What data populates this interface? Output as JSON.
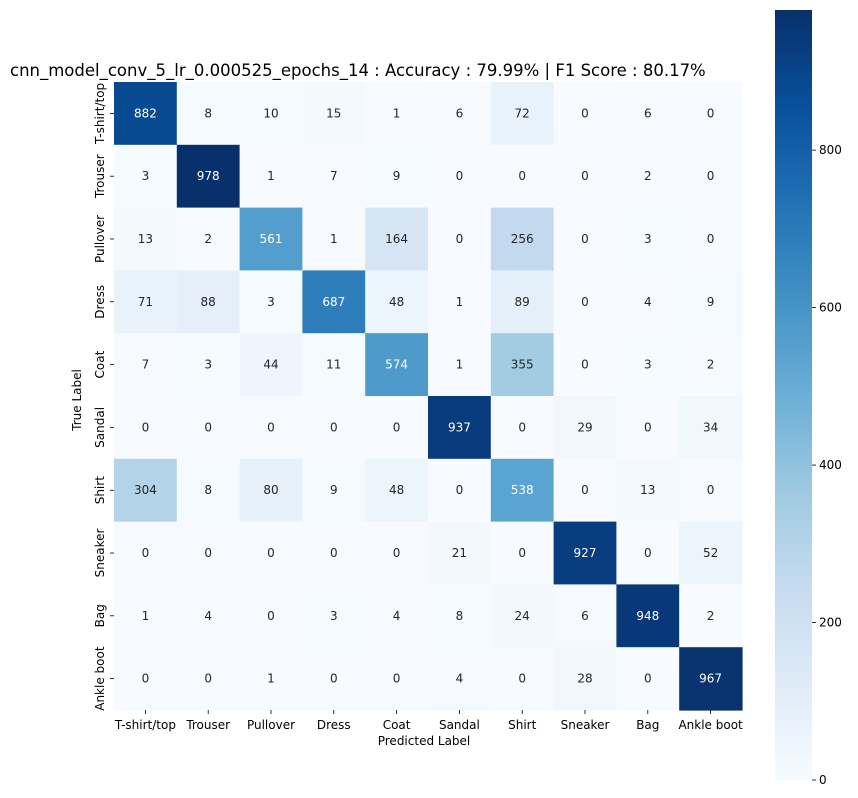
{
  "chart_data": {
    "type": "heatmap",
    "title": "cnn_model_conv_5_lr_0.000525_epochs_14 : Accuracy : 79.99% | F1 Score : 80.17%",
    "xlabel": "Predicted Label",
    "ylabel": "True Label",
    "x_categories": [
      "T-shirt/top",
      "Trouser",
      "Pullover",
      "Dress",
      "Coat",
      "Sandal",
      "Shirt",
      "Sneaker",
      "Bag",
      "Ankle boot"
    ],
    "y_categories": [
      "T-shirt/top",
      "Trouser",
      "Pullover",
      "Dress",
      "Coat",
      "Sandal",
      "Shirt",
      "Sneaker",
      "Bag",
      "Ankle boot"
    ],
    "values": [
      [
        882,
        8,
        10,
        15,
        1,
        6,
        72,
        0,
        6,
        0
      ],
      [
        3,
        978,
        1,
        7,
        9,
        0,
        0,
        0,
        2,
        0
      ],
      [
        13,
        2,
        561,
        1,
        164,
        0,
        256,
        0,
        3,
        0
      ],
      [
        71,
        88,
        3,
        687,
        48,
        1,
        89,
        0,
        4,
        9
      ],
      [
        7,
        3,
        44,
        11,
        574,
        1,
        355,
        0,
        3,
        2
      ],
      [
        0,
        0,
        0,
        0,
        0,
        937,
        0,
        29,
        0,
        34
      ],
      [
        304,
        8,
        80,
        9,
        48,
        0,
        538,
        0,
        13,
        0
      ],
      [
        0,
        0,
        0,
        0,
        0,
        21,
        0,
        927,
        0,
        52
      ],
      [
        1,
        4,
        0,
        3,
        4,
        8,
        24,
        6,
        948,
        2
      ],
      [
        0,
        0,
        1,
        0,
        0,
        4,
        0,
        28,
        0,
        967
      ]
    ],
    "colormap": "Blues",
    "colorbar": {
      "range": [
        0,
        978
      ],
      "ticks": [
        0,
        200,
        400,
        600,
        800
      ]
    },
    "annotations": true,
    "grid": false,
    "legend": "colorbar-right"
  }
}
